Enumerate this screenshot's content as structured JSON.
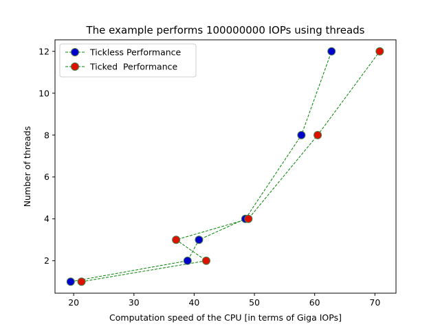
{
  "chart_data": {
    "type": "line",
    "title": "The example performs 100000000 IOPs using threads",
    "xlabel": "Computation speed of the CPU [in terms of Giga IOPs]",
    "ylabel": "Number of threads",
    "xlim": [
      16.9,
      73.5
    ],
    "ylim": [
      0.45,
      12.55
    ],
    "xticks": [
      20,
      30,
      40,
      50,
      60,
      70
    ],
    "yticks": [
      2,
      4,
      6,
      8,
      10,
      12
    ],
    "grid": false,
    "legend_position": "upper-left",
    "line_color": "#008000",
    "line_style": "dashed",
    "series": [
      {
        "name": "Tickless Performance",
        "marker_color": "#0000cc",
        "points": [
          {
            "x": 19.5,
            "y": 1
          },
          {
            "x": 38.9,
            "y": 2
          },
          {
            "x": 40.8,
            "y": 3
          },
          {
            "x": 48.5,
            "y": 4
          },
          {
            "x": 57.8,
            "y": 8
          },
          {
            "x": 62.8,
            "y": 12
          }
        ]
      },
      {
        "name": "Ticked  Performance",
        "marker_color": "#dd1100",
        "points": [
          {
            "x": 21.3,
            "y": 1
          },
          {
            "x": 42.0,
            "y": 2
          },
          {
            "x": 37.0,
            "y": 3
          },
          {
            "x": 49.0,
            "y": 4
          },
          {
            "x": 60.5,
            "y": 8
          },
          {
            "x": 70.8,
            "y": 12
          }
        ]
      }
    ]
  }
}
